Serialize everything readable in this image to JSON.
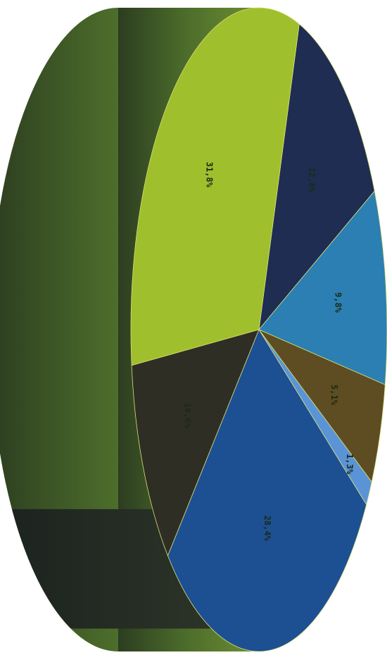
{
  "chart_data": {
    "type": "pie",
    "style": "3d-tilted-rotated",
    "title": "",
    "slices": [
      {
        "label": "12,8%",
        "value": 12.8,
        "color": "#1f2d52"
      },
      {
        "label": "9,8%",
        "value": 9.8,
        "color": "#2b7fb2"
      },
      {
        "label": "5,1%",
        "value": 5.1,
        "color": "#5e4d22"
      },
      {
        "label": "1,3%",
        "value": 1.3,
        "color": "#5b94d6"
      },
      {
        "label": "28,4%",
        "value": 28.4,
        "color": "#1d4f93"
      },
      {
        "label": "10,6%",
        "value": 10.6,
        "color": "#2f2e24"
      },
      {
        "label": "31,8%",
        "value": 31.8,
        "color": "#a0bf2c"
      }
    ],
    "legend": "none",
    "grid": false
  }
}
